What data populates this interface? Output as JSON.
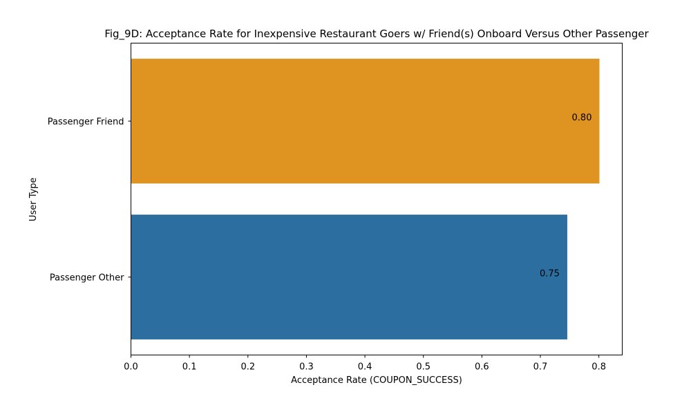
{
  "chart_data": {
    "type": "bar",
    "orientation": "horizontal",
    "title": "Fig_9D: Acceptance Rate for Inexpensive Restaurant Goers w/ Friend(s) Onboard Versus Other Passenger",
    "xlabel": "Acceptance Rate (COUPON_SUCCESS)",
    "ylabel": "User Type",
    "categories": [
      "Passenger Friend",
      "Passenger Other"
    ],
    "values": [
      0.801,
      0.746
    ],
    "data_labels": [
      "0.80",
      "0.75"
    ],
    "colors": [
      "#df9320",
      "#2b6e9f"
    ],
    "xlim": [
      0,
      0.84
    ],
    "xticks": [
      0.0,
      0.1,
      0.2,
      0.3,
      0.4,
      0.5,
      0.6,
      0.7,
      0.8
    ],
    "xtick_labels": [
      "0.0",
      "0.1",
      "0.2",
      "0.3",
      "0.4",
      "0.5",
      "0.6",
      "0.7",
      "0.8"
    ],
    "grid": false,
    "legend": "none"
  }
}
